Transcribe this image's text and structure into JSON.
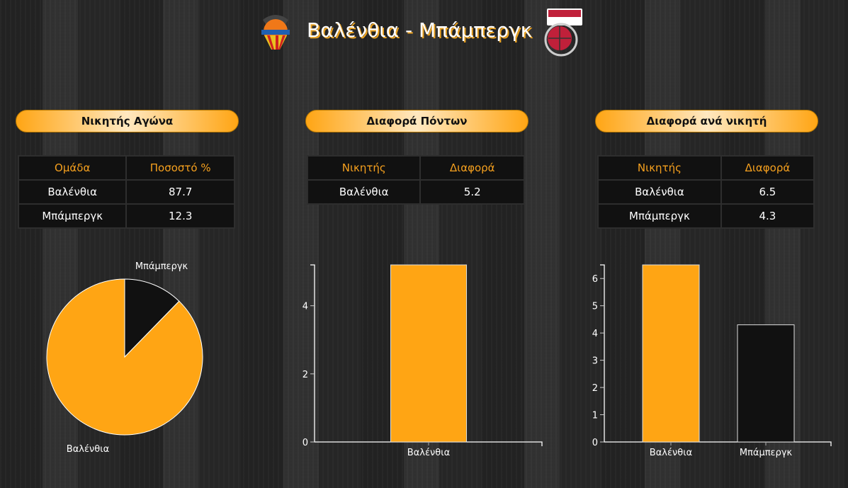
{
  "header": {
    "title": "Βαλένθια - Μπάμπεργκ",
    "home_logo": "valencia-basket-logo",
    "away_logo": "brose-baskets-logo"
  },
  "panels": [
    {
      "title": "Νικητής Αγώνα",
      "headers": [
        "Ομάδα",
        "Ποσοστό %"
      ],
      "rows": [
        [
          "Βαλένθια",
          "87.7"
        ],
        [
          "Μπάμπεργκ",
          "12.3"
        ]
      ]
    },
    {
      "title": "Διαφορά Πόντων",
      "headers": [
        "Νικητής",
        "Διαφορά"
      ],
      "rows": [
        [
          "Βαλένθια",
          "5.2"
        ]
      ]
    },
    {
      "title": "Διαφορά ανά νικητή",
      "headers": [
        "Νικητής",
        "Διαφορά"
      ],
      "rows": [
        [
          "Βαλένθια",
          "6.5"
        ],
        [
          "Μπάμπεργκ",
          "4.3"
        ]
      ]
    }
  ],
  "colors": {
    "accent": "#ffa514",
    "dark": "#111111"
  },
  "chart_data": [
    {
      "type": "pie",
      "labels": [
        "Βαλένθια",
        "Μπάμπεργκ"
      ],
      "values": [
        87.7,
        12.3
      ],
      "colors": [
        "#ffa514",
        "#111111"
      ]
    },
    {
      "type": "bar",
      "categories": [
        "Βαλένθια"
      ],
      "values": [
        5.2
      ],
      "colors": [
        "#ffa514"
      ],
      "ylim": [
        0,
        5.2
      ],
      "yticks": [
        0,
        2,
        4
      ]
    },
    {
      "type": "bar",
      "categories": [
        "Βαλένθια",
        "Μπάμπεργκ"
      ],
      "values": [
        6.5,
        4.3
      ],
      "colors": [
        "#ffa514",
        "#111111"
      ],
      "ylim": [
        0,
        6.5
      ],
      "yticks": [
        0,
        1,
        2,
        3,
        4,
        5,
        6
      ]
    }
  ]
}
